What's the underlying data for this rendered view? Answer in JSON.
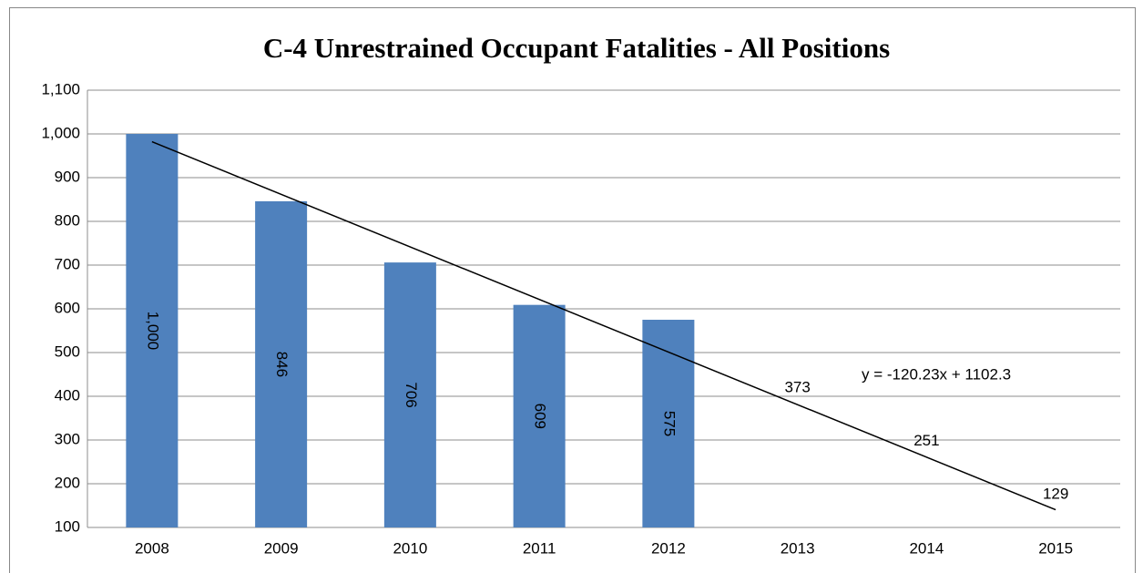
{
  "chart_data": {
    "type": "bar",
    "title": "C-4 Unrestrained Occupant Fatalities - All Positions",
    "categories": [
      "2008",
      "2009",
      "2010",
      "2011",
      "2012",
      "2013",
      "2014",
      "2015"
    ],
    "series": [
      {
        "color": "#4f81bd",
        "values": [
          1000,
          846,
          706,
          609,
          575,
          null,
          null,
          null
        ],
        "value_labels": [
          "1,000",
          "846",
          "706",
          "609",
          "575",
          null,
          null,
          null
        ]
      },
      {
        "color": "none",
        "values": [
          null,
          null,
          null,
          null,
          null,
          373,
          251,
          129
        ]
      }
    ],
    "trendline": {
      "slope": -120.23,
      "intercept": 1102.3,
      "label": "y = -120.23x + 1102.3",
      "color": "#000000"
    },
    "ylim": [
      100,
      1100
    ],
    "yticks": [
      100,
      200,
      300,
      400,
      500,
      600,
      700,
      800,
      900,
      {
        "value": 1000,
        "label": "1,000"
      },
      {
        "value": 1100,
        "label": "1,100"
      }
    ],
    "grid": true
  }
}
